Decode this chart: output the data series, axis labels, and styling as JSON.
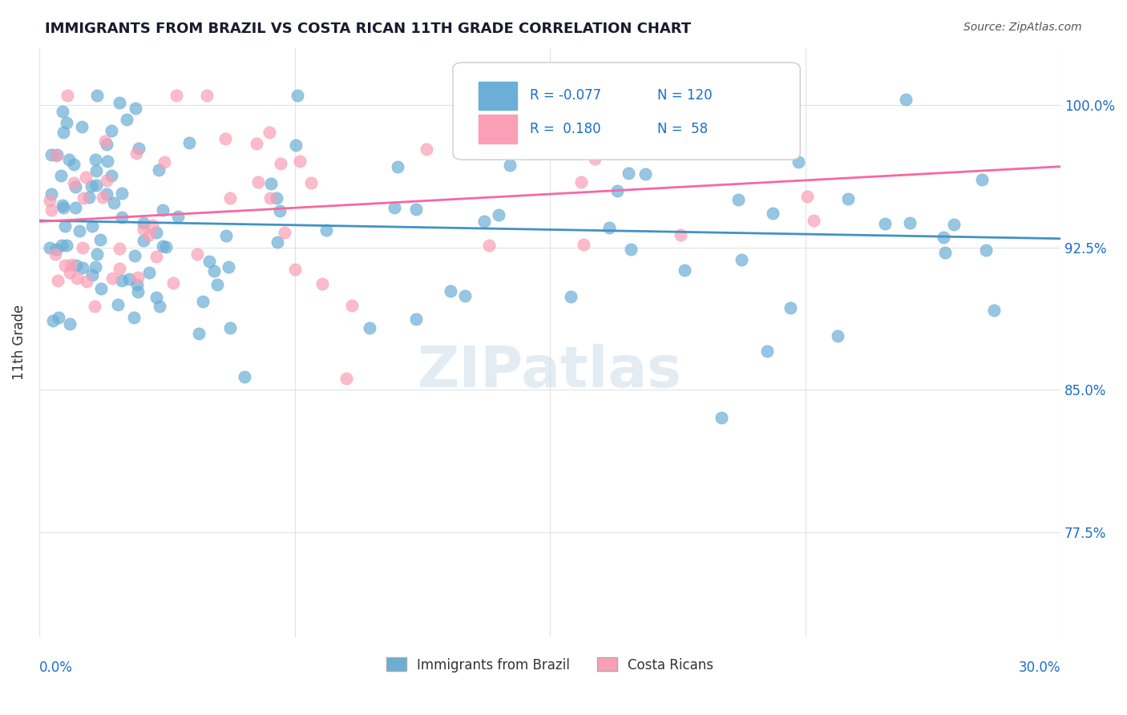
{
  "title": "IMMIGRANTS FROM BRAZIL VS COSTA RICAN 11TH GRADE CORRELATION CHART",
  "source": "Source: ZipAtlas.com",
  "ylabel": "11th Grade",
  "ytick_labels": [
    "77.5%",
    "85.0%",
    "92.5%",
    "100.0%"
  ],
  "ytick_values": [
    0.775,
    0.85,
    0.925,
    1.0
  ],
  "xlim": [
    0.0,
    0.3
  ],
  "ylim": [
    0.72,
    1.03
  ],
  "legend_blue_label": "Immigrants from Brazil",
  "legend_pink_label": "Costa Ricans",
  "blue_color": "#6baed6",
  "pink_color": "#fa9fb5",
  "blue_line_color": "#4292c6",
  "pink_line_color": "#f768a1",
  "blue_R": -0.077,
  "pink_R": 0.18,
  "blue_N": 120,
  "pink_N": 58,
  "axis_label_color": "#1a6dcc",
  "watermark": "ZIPatlas"
}
